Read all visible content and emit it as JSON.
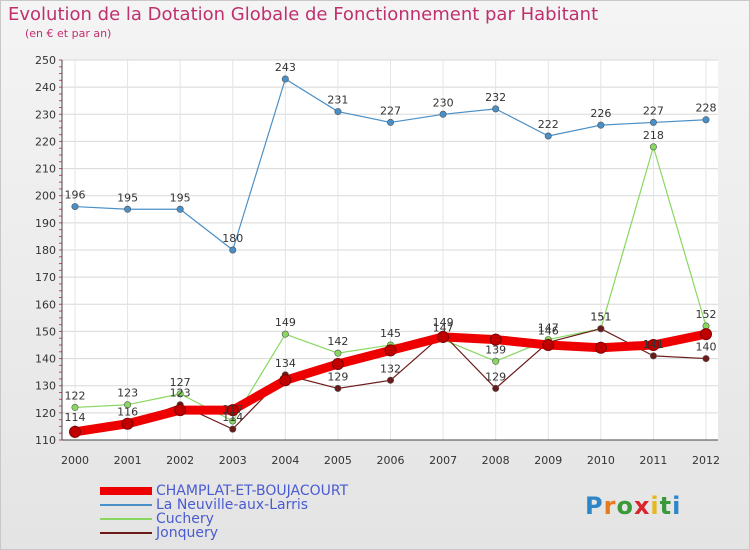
{
  "header": {
    "title": "Evolution de la Dotation Globale de Fonctionnement par Habitant",
    "subtitle": "(en € et par an)"
  },
  "logo": {
    "text": "Proxiti",
    "colors": [
      "#2d86c8",
      "#e57b1c",
      "#3a9a3a",
      "#d9262c",
      "#e5b81c",
      "#3a9a3a",
      "#2d86c8"
    ]
  },
  "chart_data": {
    "type": "line",
    "title": "Evolution de la Dotation Globale de Fonctionnement par Habitant",
    "subtitle": "(en € et par an)",
    "x": [
      "2000",
      "2001",
      "2002",
      "2003",
      "2004",
      "2005",
      "2006",
      "2007",
      "2008",
      "2009",
      "2010",
      "2011",
      "2012"
    ],
    "ylim": [
      110,
      250
    ],
    "yticks": [
      110,
      120,
      130,
      140,
      150,
      160,
      170,
      180,
      190,
      200,
      210,
      220,
      230,
      240,
      250
    ],
    "grid": true,
    "legend": "bottom-left",
    "series": [
      {
        "name": "CHAMPLAT-ET-BOUJACOURT",
        "color": "#ee0000",
        "values": [
          113,
          116,
          121,
          121,
          132,
          138,
          143,
          148,
          147,
          145,
          144,
          145,
          149
        ],
        "labels": [
          "113",
          "116",
          "121",
          "121",
          "132",
          "138",
          "143",
          "148",
          "147",
          "145",
          "144",
          "145",
          "149"
        ],
        "label_dy": [
          0,
          0,
          -8,
          -8,
          0,
          0,
          0,
          -8,
          0,
          -8,
          0,
          0,
          -8
        ],
        "show_labels": false
      },
      {
        "name": "La Neuville-aux-Larris",
        "color": "#4a90c8",
        "values": [
          196,
          195,
          195,
          180,
          243,
          231,
          227,
          230,
          232,
          222,
          226,
          227,
          228
        ],
        "show_labels": true
      },
      {
        "name": "Cuchery",
        "color": "#88d860",
        "values": [
          122,
          123,
          127,
          117,
          149,
          142,
          145,
          147,
          139,
          147,
          151,
          218,
          152
        ],
        "show_labels": true
      },
      {
        "name": "Jonquery",
        "color": "#6b1a1a",
        "values": [
          114,
          116,
          123,
          114,
          134,
          129,
          132,
          149,
          129,
          146,
          151,
          141,
          140
        ],
        "show_labels": true
      }
    ]
  }
}
